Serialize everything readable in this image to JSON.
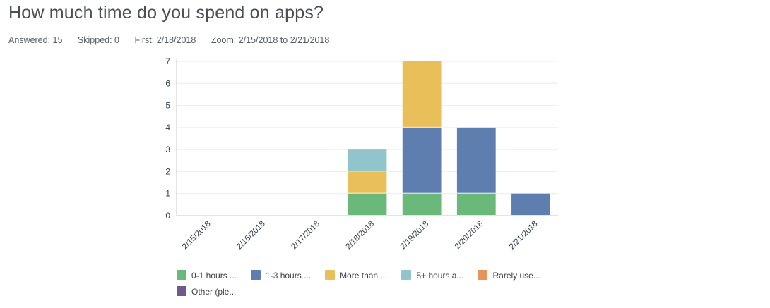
{
  "question": {
    "title": "How much time do you spend on apps?"
  },
  "stats": {
    "answered": "Answered: 15",
    "skipped": "Skipped: 0",
    "first": "First: 2/18/2018",
    "zoom": "Zoom: 2/15/2018 to 2/21/2018"
  },
  "chart_data": {
    "type": "bar",
    "stacked": true,
    "categories": [
      "2/15/2018",
      "2/16/2018",
      "2/17/2018",
      "2/18/2018",
      "2/19/2018",
      "2/20/2018",
      "2/21/2018"
    ],
    "series": [
      {
        "name": "0-1 hours ...",
        "color": "#6bb87b",
        "values": [
          0,
          0,
          0,
          1,
          1,
          1,
          0
        ]
      },
      {
        "name": "1-3 hours ...",
        "color": "#5f7eb0",
        "values": [
          0,
          0,
          0,
          0,
          3,
          3,
          1
        ]
      },
      {
        "name": "More than ...",
        "color": "#e9bf59",
        "values": [
          0,
          0,
          0,
          1,
          3,
          0,
          0
        ]
      },
      {
        "name": "5+ hours a...",
        "color": "#92c4cb",
        "values": [
          0,
          0,
          0,
          1,
          0,
          0,
          0
        ]
      },
      {
        "name": "Rarely use...",
        "color": "#e8935b",
        "values": [
          0,
          0,
          0,
          0,
          0,
          0,
          0
        ]
      },
      {
        "name": "Other (ple...",
        "color": "#6e5b8c",
        "values": [
          0,
          0,
          0,
          0,
          0,
          0,
          0
        ]
      }
    ],
    "yticks": [
      "0",
      "1",
      "2",
      "3",
      "4",
      "5",
      "6",
      "7"
    ],
    "ylim": [
      0,
      7
    ],
    "grid": true,
    "legend_position": "bottom"
  }
}
